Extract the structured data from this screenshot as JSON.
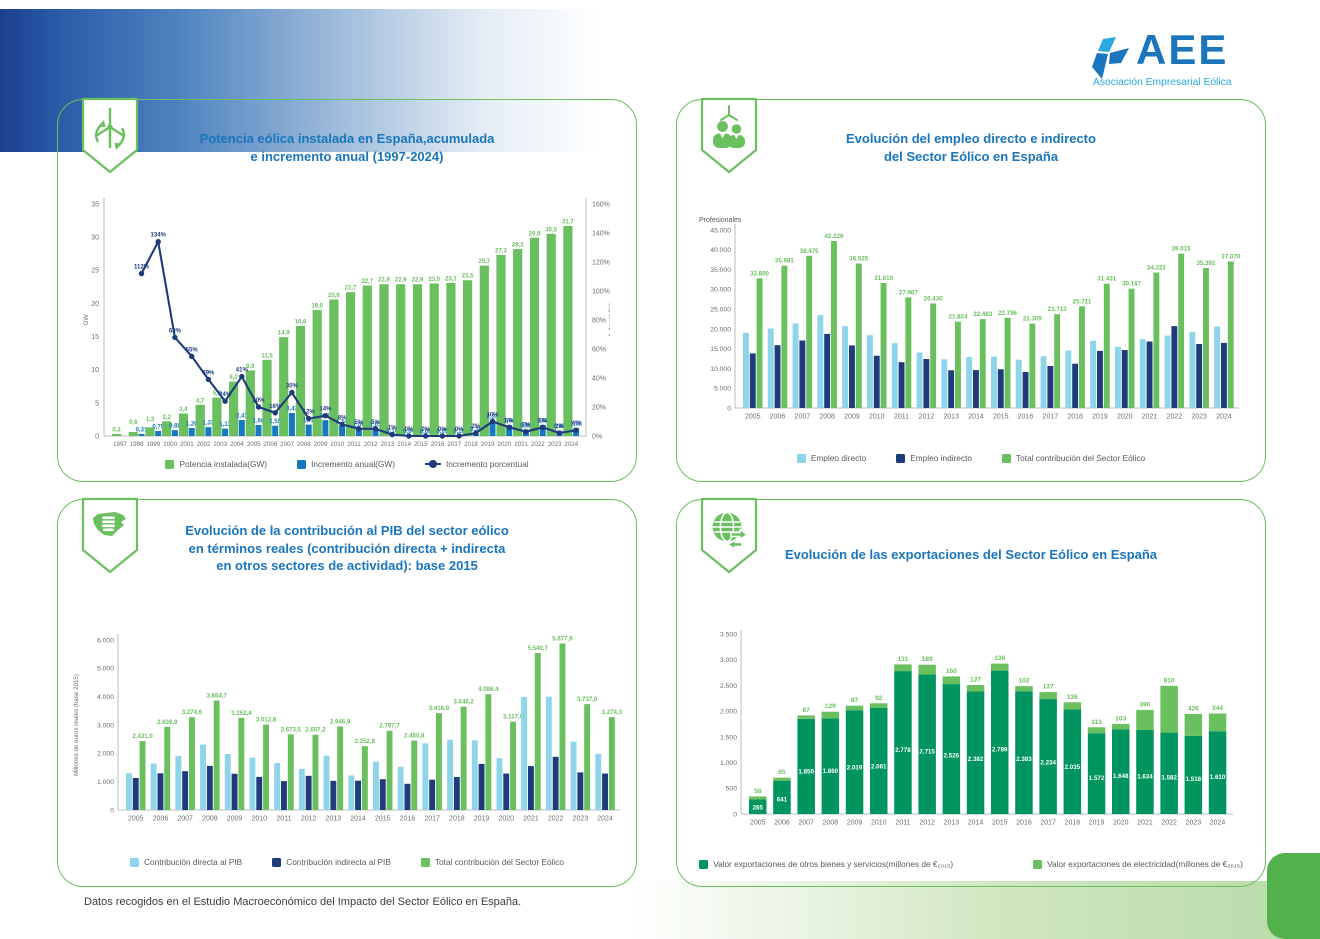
{
  "page": {
    "footer": "Datos recogidos en el Estudio Macroeconómico del Impacto del Sector Eólico en España.",
    "logo": {
      "name": "AEE",
      "subtitle": "Asociación Empresarial Eólica"
    }
  },
  "colors": {
    "brand_blue": "#1a75bc",
    "light_blue": "#29a9e0",
    "green": "#6abf5f",
    "dark_green": "#00945f",
    "navy": "#1e3c7c",
    "bar_blue": "#1778c2",
    "bar_light_blue": "#8ed4ea",
    "axis_gray": "#6d6e71",
    "legend_gray": "#58595b"
  },
  "chart_data": [
    {
      "type": "bar+line",
      "title": "Potencia eólica instalada en España,acumulada\ne incremento anual (1997-2024)",
      "x": [
        1997,
        1998,
        1999,
        2000,
        2001,
        2002,
        2003,
        2004,
        2005,
        2006,
        2007,
        2008,
        2009,
        2010,
        2011,
        2012,
        2013,
        2014,
        2015,
        2016,
        2017,
        2018,
        2019,
        2020,
        2021,
        2022,
        2023,
        2024
      ],
      "ylabel_left": "GW",
      "ylabel_right": "Δ Anual (%)",
      "ylim_left": [
        0,
        35
      ],
      "ylim_right": [
        0,
        160
      ],
      "yticks_left": [
        0,
        5,
        10,
        15,
        20,
        25,
        30,
        35
      ],
      "yticks_right": [
        0,
        20,
        40,
        60,
        80,
        100,
        120,
        140,
        160
      ],
      "legend_position": "bottom",
      "grid": false,
      "series": [
        {
          "name": "Potencia instalada(GW)",
          "kind": "bar",
          "color": "#6abf5f",
          "values": [
            0.3,
            0.6,
            1.3,
            2.2,
            3.4,
            4.7,
            5.8,
            8.2,
            9.9,
            11.5,
            14.9,
            16.6,
            19.0,
            20.6,
            21.7,
            22.7,
            22.9,
            22.9,
            22.9,
            23.0,
            23.1,
            23.5,
            25.7,
            27.3,
            28.2,
            29.9,
            30.5,
            31.7
          ]
        },
        {
          "name": "Incremento anual(GW)",
          "kind": "bar",
          "color": "#1778c2",
          "values": [
            null,
            0.31,
            0.75,
            0.88,
            1.2,
            1.33,
            1.11,
            2.41,
            1.66,
            1.55,
            3.47,
            1.72,
            2.4,
            1.54,
            1.09,
            1.03,
            0.18,
            0.04,
            0.0,
            0.05,
            0.1,
            0.38,
            2.24,
            1.64,
            0.88,
            1.68,
            0.8,
            1.18
          ]
        },
        {
          "name": "Incremento porcentual",
          "kind": "line",
          "color": "#1e3c7c",
          "values": [
            null,
            112,
            134,
            68,
            55,
            39,
            24,
            41,
            20,
            16,
            30,
            12,
            14,
            8,
            5,
            5,
            1,
            0,
            0,
            0,
            0,
            2,
            10,
            6,
            3,
            6,
            2,
            4
          ]
        }
      ]
    },
    {
      "type": "bar",
      "title": "Evolución del empleo directo e indirecto\ndel Sector Eólico en España",
      "ylabel": "Profesionales",
      "x": [
        2005,
        2006,
        2007,
        2008,
        2009,
        2010,
        2011,
        2012,
        2013,
        2014,
        2015,
        2016,
        2017,
        2018,
        2019,
        2020,
        2021,
        2022,
        2023,
        2024
      ],
      "ylim": [
        0,
        45000
      ],
      "yticks": [
        0,
        5000,
        10000,
        15000,
        20000,
        25000,
        30000,
        35000,
        40000,
        45000
      ],
      "legend_position": "bottom",
      "grid": false,
      "series": [
        {
          "name": "Empleo directo",
          "color": "#8ed4ea",
          "values": [
            19000,
            20100,
            21400,
            23500,
            20700,
            18400,
            16400,
            14030,
            12300,
            12900,
            13000,
            12200,
            13100,
            14500,
            17000,
            15500,
            17400,
            18300,
            19200,
            20600
          ]
        },
        {
          "name": "Empleo indirecto",
          "color": "#1e3c7c",
          "values": [
            13800,
            15881,
            17075,
            18726,
            15825,
            13210,
            11567,
            12400,
            9524,
            9583,
            9796,
            9109,
            10613,
            11211,
            14431,
            14667,
            16822,
            20715,
            16192,
            16470
          ]
        },
        {
          "name": "Total contribución del Sector Eólico",
          "color": "#6abf5f",
          "labeled": true,
          "values": [
            32800,
            35981,
            38475,
            42226,
            36525,
            31610,
            27967,
            26430,
            21824,
            22483,
            22796,
            21309,
            23713,
            25711,
            31431,
            30167,
            34222,
            39015,
            35392,
            37070
          ]
        }
      ]
    },
    {
      "type": "bar",
      "title": "Evolución de la contribución al PIB del sector eólico\nen términos reales (contribución directa + indirecta\nen otros sectores de actividad): base 2015",
      "ylabel": "Millones de euros reales (base 2015)",
      "x": [
        2005,
        2006,
        2007,
        2008,
        2009,
        2010,
        2011,
        2012,
        2013,
        2014,
        2015,
        2016,
        2017,
        2018,
        2019,
        2020,
        2021,
        2022,
        2023,
        2024
      ],
      "ylim": [
        0,
        6000
      ],
      "yticks": [
        0,
        1000,
        2000,
        3000,
        4000,
        5000,
        6000
      ],
      "legend_position": "bottom",
      "grid": false,
      "series": [
        {
          "name": "Contribución directa al PIB",
          "color": "#8ed4ea",
          "values": [
            1300,
            1640,
            1905,
            2310,
            1975,
            1845,
            1655,
            1450,
            1915,
            1220,
            1710,
            1525,
            2350,
            2480,
            2460,
            1830,
            3990,
            4000,
            2410,
            1985
          ]
        },
        {
          "name": "Contribución indirecta al PIB",
          "color": "#1e3c7c",
          "values": [
            1131,
            1297,
            1370,
            1555,
            1277,
            1168,
            1019,
            1207,
            1032,
            1033,
            1088,
            926,
            1069,
            1166,
            1626,
            1287,
            1551,
            1878,
            1327,
            1289
          ]
        },
        {
          "name": "Total contribución del Sector Eólico",
          "color": "#6abf5f",
          "labeled": true,
          "decimal_labels": true,
          "values": [
            2431.0,
            2936.9,
            3274.6,
            3864.7,
            3252.4,
            3012.8,
            2673.5,
            2657.2,
            2946.9,
            2252.8,
            2797.7,
            2450.8,
            3418.9,
            3646.2,
            4086.4,
            3117.0,
            5540.7,
            5877.9,
            3737.0,
            3274.3
          ]
        }
      ]
    },
    {
      "type": "stacked-bar",
      "title": "Evolución de las exportaciones del Sector Eólico en España",
      "x": [
        2005,
        2006,
        2007,
        2008,
        2009,
        2010,
        2011,
        2012,
        2013,
        2014,
        2015,
        2016,
        2017,
        2018,
        2019,
        2020,
        2021,
        2022,
        2023,
        2024
      ],
      "ylim": [
        0,
        3500
      ],
      "yticks": [
        0,
        500,
        1000,
        1500,
        2000,
        2500,
        3000,
        3500
      ],
      "legend_position": "bottom",
      "grid": false,
      "series": [
        {
          "name": "Valor exportaciones de otros bienes y servicios(millones de €₂₀₁₅)",
          "color": "#00945f",
          "values": [
            285,
            641,
            1850,
            1860,
            2019,
            2061,
            2778,
            2715,
            2526,
            2382,
            2789,
            2383,
            2234,
            2035,
            1572,
            1648,
            1634,
            1582,
            1518,
            1610
          ]
        },
        {
          "name": "Valor exportaciones de electricidad(millones de €₂₀₁₅)",
          "color": "#6abf5f",
          "values": [
            58,
            65,
            67,
            129,
            87,
            92,
            131,
            189,
            150,
            127,
            136,
            102,
            137,
            136,
            113,
            103,
            390,
            910,
            426,
            344
          ]
        }
      ]
    }
  ]
}
